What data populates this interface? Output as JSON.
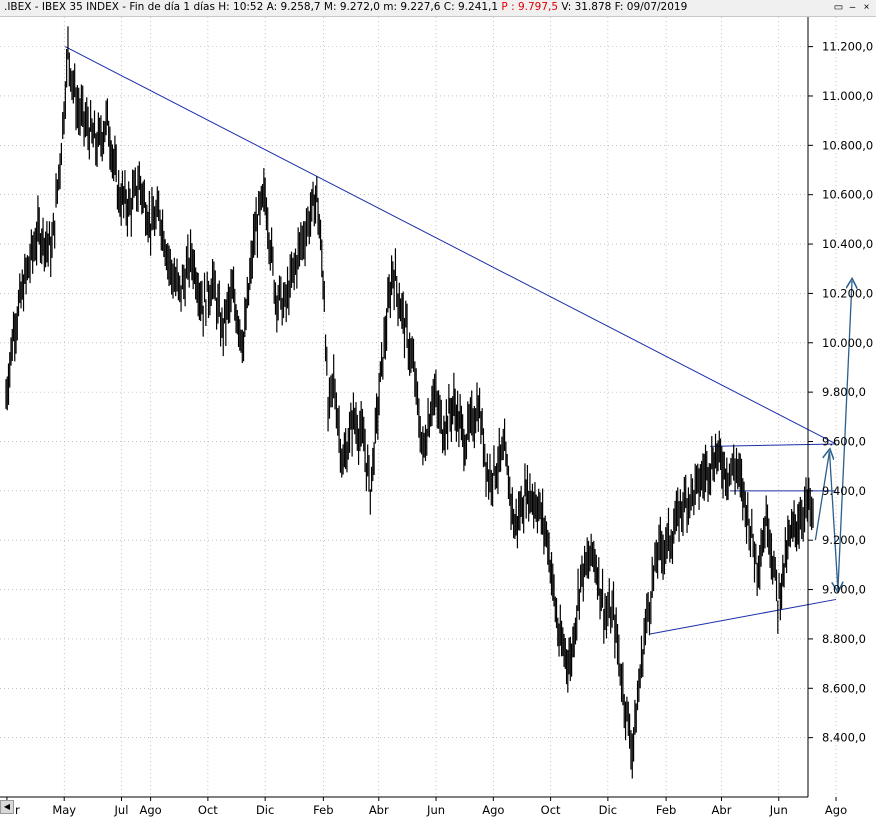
{
  "window": {
    "title_prefix": ".IBEX - IBEX 35 INDEX - Fin de día 1 días  H: 10:52  A: 9.258,7  M: 9.272,0  m: 9.227,6  C: 9.241,1 ",
    "title_highlight": "P : 9.797,5",
    "title_suffix": "  V: 31.878  F: 09/07/2019",
    "controls": [
      "▭",
      "–",
      "×"
    ]
  },
  "colors": {
    "price": "#000000",
    "trendline": "#1a2ea8",
    "projection": "#2b5f8c",
    "grid": "#a0a0a0"
  },
  "chart_data": {
    "type": "line",
    "title": ".IBEX - IBEX 35 INDEX",
    "xlabel": "",
    "ylabel": "",
    "ylim": [
      8200,
      11320
    ],
    "grid": "dotted",
    "y_ticks": [
      "11.200,0",
      "11.000,0",
      "10.800,0",
      "10.600,0",
      "10.400,0",
      "10.200,0",
      "10.000,0",
      "9.800,0",
      "9.600,0",
      "9.400,0",
      "9.200,0",
      "9.000,0",
      "8.800,0",
      "8.600,0",
      "8.400,0"
    ],
    "y_tick_values": [
      11200,
      11000,
      10800,
      10600,
      10400,
      10200,
      10000,
      9800,
      9600,
      9400,
      9200,
      9000,
      8800,
      8600,
      8400
    ],
    "x_ticks": [
      "ar",
      "May",
      "Jul",
      "Ago",
      "Oct",
      "Dic",
      "Feb",
      "Abr",
      "Jun",
      "Ago",
      "Oct",
      "Dic",
      "Feb",
      "Abr",
      "Jun",
      "Ago"
    ],
    "x_tick_dates": [
      "2017-03-01",
      "2017-05-01",
      "2017-07-01",
      "2017-08-01",
      "2017-10-01",
      "2017-12-01",
      "2018-02-01",
      "2018-04-01",
      "2018-06-01",
      "2018-08-01",
      "2018-10-01",
      "2018-12-01",
      "2019-02-01",
      "2019-04-01",
      "2019-06-01",
      "2019-08-01"
    ],
    "series": [
      {
        "dates": [
          "2017-02-28",
          "2017-03-08",
          "2017-03-20",
          "2017-04-03",
          "2017-04-18",
          "2017-04-28",
          "2017-05-05",
          "2017-05-15",
          "2017-05-25",
          "2017-06-05",
          "2017-06-16",
          "2017-06-28",
          "2017-07-10",
          "2017-07-20",
          "2017-08-01",
          "2017-08-11",
          "2017-08-22",
          "2017-09-01",
          "2017-09-14",
          "2017-09-26",
          "2017-10-06",
          "2017-10-16",
          "2017-10-27",
          "2017-11-08",
          "2017-11-20",
          "2017-12-01",
          "2017-12-12",
          "2017-12-22",
          "2018-01-08",
          "2018-01-17",
          "2018-01-25",
          "2018-02-02",
          "2018-02-06",
          "2018-02-12",
          "2018-02-22",
          "2018-03-05",
          "2018-03-16",
          "2018-03-23",
          "2018-04-04",
          "2018-04-16",
          "2018-04-27",
          "2018-05-08",
          "2018-05-18",
          "2018-05-29",
          "2018-06-08",
          "2018-06-20",
          "2018-07-02",
          "2018-07-16",
          "2018-07-27",
          "2018-08-13",
          "2018-08-24",
          "2018-09-05",
          "2018-09-17",
          "2018-09-28",
          "2018-10-10",
          "2018-10-22",
          "2018-11-02",
          "2018-11-16",
          "2018-11-28",
          "2018-12-07",
          "2018-12-17",
          "2018-12-27",
          "2019-01-10",
          "2019-01-23",
          "2019-02-05",
          "2019-02-19",
          "2019-03-04",
          "2019-03-15",
          "2019-03-27",
          "2019-04-08",
          "2019-04-17",
          "2019-04-29",
          "2019-05-09",
          "2019-05-20",
          "2019-05-31",
          "2019-06-12",
          "2019-06-24",
          "2019-07-03",
          "2019-07-09"
        ],
        "close": [
          9780,
          10050,
          10250,
          10450,
          10380,
          10800,
          11180,
          10950,
          10880,
          10800,
          10900,
          10600,
          10550,
          10650,
          10480,
          10520,
          10300,
          10200,
          10350,
          10150,
          10250,
          10050,
          10200,
          10000,
          10450,
          10600,
          10200,
          10150,
          10400,
          10500,
          10600,
          10200,
          9700,
          9850,
          9500,
          9700,
          9600,
          9400,
          9900,
          10300,
          10100,
          9900,
          9550,
          9800,
          9650,
          9750,
          9600,
          9750,
          9450,
          9550,
          9250,
          9400,
          9350,
          9200,
          8800,
          8700,
          9050,
          9150,
          8900,
          8900,
          8600,
          8350,
          8850,
          9150,
          9200,
          9350,
          9400,
          9480,
          9550,
          9470,
          9500,
          9300,
          9100,
          9300,
          8950,
          9200,
          9300,
          9350,
          9241.1
        ]
      }
    ],
    "trendlines": [
      {
        "from_date": "2017-05-02",
        "from_value": 11200,
        "to_date": "2019-08-01",
        "to_value": 9590
      },
      {
        "from_date": "2019-01-15",
        "from_value": 8820,
        "to_date": "2019-08-01",
        "to_value": 8960
      },
      {
        "from_date": "2019-03-20",
        "from_value": 9580,
        "to_date": "2019-08-01",
        "to_value": 9590
      },
      {
        "from_date": "2019-04-10",
        "from_value": 9400,
        "to_date": "2019-08-01",
        "to_value": 9400
      }
    ],
    "projection": [
      {
        "date": "2019-07-10",
        "value": 9200
      },
      {
        "date": "2019-07-25",
        "value": 9560
      },
      {
        "date": "2019-08-03",
        "value": 9000
      },
      {
        "date": "2019-08-18",
        "value": 10250
      }
    ]
  }
}
